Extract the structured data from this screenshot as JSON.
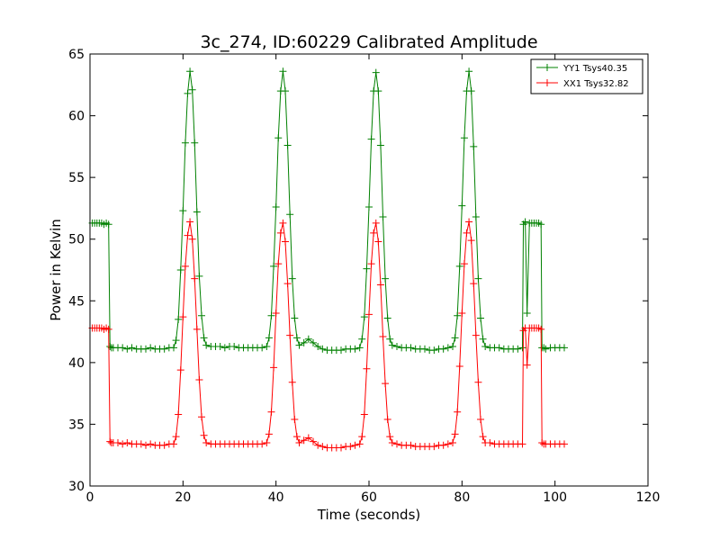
{
  "chart_data": {
    "type": "line",
    "title": "3c_274, ID:60229 Calibrated Amplitude",
    "xlabel": "Time (seconds)",
    "ylabel": "Power in Kelvin",
    "xlim": [
      0,
      120
    ],
    "ylim": [
      30,
      65
    ],
    "xticks": [
      "0",
      "20",
      "40",
      "60",
      "80",
      "100",
      "120"
    ],
    "yticks": [
      "30",
      "35",
      "40",
      "45",
      "50",
      "55",
      "60",
      "65"
    ],
    "grid": false,
    "legend_position": "top-right",
    "series": [
      {
        "name": "YY1 Tsys40.35",
        "color": "#008000",
        "marker": "plus",
        "x": [
          0.5,
          1,
          1.5,
          2,
          2.5,
          3,
          3.5,
          4,
          4.3,
          4.6,
          5,
          6,
          7,
          8,
          9,
          10,
          11,
          12,
          13,
          14,
          15,
          16,
          17,
          18,
          18.5,
          19,
          19.5,
          20,
          20.5,
          21,
          21.5,
          22,
          22.5,
          23,
          23.5,
          24,
          24.5,
          25,
          26,
          27,
          28,
          29,
          30,
          31,
          32,
          33,
          34,
          35,
          36,
          37,
          38,
          38.5,
          39,
          39.5,
          40,
          40.5,
          41,
          41.5,
          42,
          42.5,
          43,
          43.5,
          44,
          44.5,
          45,
          46,
          47,
          48,
          49,
          50,
          51,
          52,
          53,
          54,
          55,
          56,
          57,
          58,
          58.5,
          59,
          59.5,
          60,
          60.5,
          61,
          61.5,
          62,
          62.5,
          63,
          63.5,
          64,
          64.5,
          65,
          66,
          67,
          68,
          69,
          70,
          71,
          72,
          73,
          74,
          75,
          76,
          77,
          78,
          78.5,
          79,
          79.5,
          80,
          80.5,
          81,
          81.5,
          82,
          82.5,
          83,
          83.5,
          84,
          84.5,
          85,
          86,
          87,
          88,
          89,
          90,
          91,
          92,
          93,
          93.2,
          93.6,
          94,
          94.5,
          95,
          95.5,
          96,
          96.5,
          97,
          97.2,
          97.6,
          98,
          99,
          100,
          101,
          102
        ],
        "y": [
          51.3,
          51.3,
          51.3,
          51.3,
          51.3,
          51.2,
          51.3,
          51.2,
          41.3,
          41.2,
          41.2,
          41.2,
          41.2,
          41.1,
          41.2,
          41.1,
          41.1,
          41.1,
          41.2,
          41.1,
          41.1,
          41.1,
          41.2,
          41.2,
          41.8,
          43.5,
          47.5,
          52.3,
          57.8,
          61.8,
          63.6,
          62.1,
          57.8,
          52.2,
          47.0,
          43.8,
          42.0,
          41.4,
          41.3,
          41.3,
          41.3,
          41.2,
          41.3,
          41.3,
          41.2,
          41.2,
          41.2,
          41.2,
          41.2,
          41.2,
          41.3,
          42.0,
          43.8,
          47.8,
          52.6,
          58.2,
          62.0,
          63.6,
          62.0,
          57.6,
          52.0,
          46.8,
          43.6,
          42.0,
          41.4,
          41.6,
          41.9,
          41.6,
          41.3,
          41.1,
          41.0,
          41.0,
          41.0,
          41.0,
          41.1,
          41.1,
          41.1,
          41.2,
          41.9,
          43.7,
          47.6,
          52.6,
          58.1,
          62.0,
          63.5,
          62.0,
          57.6,
          51.8,
          46.8,
          43.6,
          41.9,
          41.4,
          41.3,
          41.2,
          41.2,
          41.2,
          41.1,
          41.1,
          41.1,
          41.0,
          41.0,
          41.1,
          41.1,
          41.2,
          41.3,
          42.0,
          43.8,
          47.8,
          52.7,
          58.2,
          62.0,
          63.6,
          62.0,
          57.5,
          51.8,
          46.8,
          43.6,
          41.9,
          41.3,
          41.2,
          41.2,
          41.2,
          41.1,
          41.1,
          41.1,
          41.1,
          41.2,
          51.2,
          51.4,
          44.0,
          51.3,
          51.3,
          51.3,
          51.3,
          51.3,
          51.2,
          41.2,
          41.2,
          41.1,
          41.2,
          41.2,
          41.2,
          41.2
        ]
      },
      {
        "name": "XX1 Tsys32.82",
        "color": "#ff0000",
        "marker": "plus",
        "x": [
          0.5,
          1,
          1.5,
          2,
          2.5,
          3,
          3.5,
          4,
          4.3,
          4.6,
          5,
          6,
          7,
          8,
          9,
          10,
          11,
          12,
          13,
          14,
          15,
          16,
          17,
          18,
          18.5,
          19,
          19.5,
          20,
          20.5,
          21,
          21.5,
          22,
          22.5,
          23,
          23.5,
          24,
          24.5,
          25,
          26,
          27,
          28,
          29,
          30,
          31,
          32,
          33,
          34,
          35,
          36,
          37,
          38,
          38.5,
          39,
          39.5,
          40,
          40.5,
          41,
          41.5,
          42,
          42.5,
          43,
          43.5,
          44,
          44.5,
          45,
          46,
          47,
          48,
          49,
          50,
          51,
          52,
          53,
          54,
          55,
          56,
          57,
          58,
          58.5,
          59,
          59.5,
          60,
          60.5,
          61,
          61.5,
          62,
          62.5,
          63,
          63.5,
          64,
          64.5,
          65,
          66,
          67,
          68,
          69,
          70,
          71,
          72,
          73,
          74,
          75,
          76,
          77,
          78,
          78.5,
          79,
          79.5,
          80,
          80.5,
          81,
          81.5,
          82,
          82.5,
          83,
          83.5,
          84,
          84.5,
          85,
          86,
          87,
          88,
          89,
          90,
          91,
          92,
          93,
          93.2,
          93.6,
          94,
          94.5,
          95,
          95.5,
          96,
          96.5,
          97,
          97.2,
          97.6,
          98,
          99,
          100,
          101,
          102
        ],
        "y": [
          42.8,
          42.8,
          42.8,
          42.8,
          42.8,
          42.7,
          42.8,
          42.7,
          33.6,
          33.5,
          33.5,
          33.5,
          33.4,
          33.5,
          33.4,
          33.4,
          33.4,
          33.3,
          33.4,
          33.3,
          33.3,
          33.3,
          33.4,
          33.4,
          34.0,
          35.8,
          39.4,
          43.7,
          47.8,
          50.3,
          51.4,
          50.0,
          46.8,
          42.7,
          38.6,
          35.6,
          34.1,
          33.5,
          33.4,
          33.4,
          33.4,
          33.4,
          33.4,
          33.4,
          33.4,
          33.4,
          33.4,
          33.4,
          33.4,
          33.4,
          33.5,
          34.2,
          36.0,
          39.6,
          44.0,
          48.0,
          50.5,
          51.3,
          49.8,
          46.4,
          42.2,
          38.4,
          35.4,
          34.0,
          33.5,
          33.7,
          33.9,
          33.6,
          33.3,
          33.2,
          33.1,
          33.1,
          33.1,
          33.1,
          33.2,
          33.2,
          33.3,
          33.4,
          34.0,
          35.8,
          39.5,
          43.9,
          48.0,
          50.5,
          51.3,
          49.8,
          46.3,
          42.1,
          38.3,
          35.4,
          34.0,
          33.5,
          33.4,
          33.3,
          33.3,
          33.3,
          33.2,
          33.2,
          33.2,
          33.2,
          33.2,
          33.3,
          33.3,
          33.4,
          33.5,
          34.2,
          36.0,
          39.7,
          44.0,
          48.0,
          50.5,
          51.4,
          49.9,
          46.4,
          42.2,
          38.4,
          35.4,
          34.0,
          33.5,
          33.5,
          33.4,
          33.4,
          33.4,
          33.4,
          33.4,
          33.4,
          33.4,
          42.6,
          42.8,
          39.8,
          42.8,
          42.8,
          42.8,
          42.8,
          42.8,
          42.7,
          33.5,
          33.4,
          33.4,
          33.4,
          33.4,
          33.4,
          33.4
        ]
      }
    ]
  }
}
